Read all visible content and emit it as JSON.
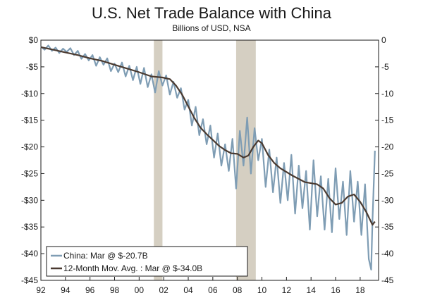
{
  "chart_data": {
    "type": "line",
    "title": "U.S. Net Trade Balance with China",
    "subtitle": "Billions of USD, NSA",
    "xlim": [
      1992,
      2019.5
    ],
    "ylim": [
      -45,
      0
    ],
    "x_ticks": [
      "92",
      "94",
      "96",
      "98",
      "00",
      "02",
      "04",
      "06",
      "08",
      "10",
      "12",
      "14",
      "16",
      "18"
    ],
    "y_ticks": [
      "$0",
      "-$5",
      "-$10",
      "-$15",
      "-$20",
      "-$25",
      "-$30",
      "-$35",
      "-$40",
      "-$45"
    ],
    "y_ticks_right": [
      "0",
      "-5",
      "-10",
      "-15",
      "-20",
      "-25",
      "-30",
      "-35",
      "-40",
      "-45"
    ],
    "recessions": [
      [
        2001.2,
        2001.9
      ],
      [
        2007.9,
        2009.5
      ]
    ],
    "colors": {
      "china": "#7f9db4",
      "moving_avg": "#4a3a30",
      "recession": "#d5cfc2"
    },
    "legend_position": "bottom-left",
    "series": [
      {
        "name": "China: Mar @ $-20.7B",
        "x": [
          1992,
          1992.3,
          1992.6,
          1992.9,
          1993.2,
          1993.5,
          1993.8,
          1994.1,
          1994.4,
          1994.7,
          1995,
          1995.3,
          1995.6,
          1995.9,
          1996.2,
          1996.5,
          1996.8,
          1997.1,
          1997.4,
          1997.7,
          1998,
          1998.3,
          1998.6,
          1998.9,
          1999.2,
          1999.5,
          1999.8,
          2000.1,
          2000.4,
          2000.7,
          2001,
          2001.3,
          2001.6,
          2001.9,
          2002.2,
          2002.5,
          2002.8,
          2003.1,
          2003.4,
          2003.7,
          2004,
          2004.3,
          2004.6,
          2004.9,
          2005.2,
          2005.5,
          2005.8,
          2006.1,
          2006.4,
          2006.7,
          2007,
          2007.3,
          2007.6,
          2007.9,
          2008.2,
          2008.5,
          2008.8,
          2009.1,
          2009.4,
          2009.7,
          2010,
          2010.3,
          2010.6,
          2010.9,
          2011.2,
          2011.5,
          2011.8,
          2012.1,
          2012.4,
          2012.7,
          2013,
          2013.3,
          2013.6,
          2013.9,
          2014.2,
          2014.5,
          2014.8,
          2015.1,
          2015.4,
          2015.7,
          2016,
          2016.3,
          2016.6,
          2016.9,
          2017.2,
          2017.5,
          2017.8,
          2018.1,
          2018.4,
          2018.7,
          2018.9,
          2019,
          2019.2
        ],
        "values": [
          -1.2,
          -1.8,
          -1.0,
          -2.0,
          -1.4,
          -2.4,
          -1.6,
          -2.2,
          -1.5,
          -2.8,
          -2.0,
          -3.5,
          -2.6,
          -3.8,
          -2.8,
          -4.8,
          -3.2,
          -4.6,
          -3.4,
          -5.8,
          -4.4,
          -6.0,
          -4.2,
          -6.8,
          -4.8,
          -7.5,
          -5.0,
          -8.2,
          -5.2,
          -8.8,
          -6.4,
          -9.8,
          -5.8,
          -8.5,
          -6.6,
          -10.2,
          -7.8,
          -10.8,
          -9.0,
          -13.0,
          -11.2,
          -16.0,
          -12.5,
          -17.8,
          -14.8,
          -19.5,
          -16.0,
          -22.0,
          -17.5,
          -23.5,
          -19.5,
          -24.5,
          -18.5,
          -27.8,
          -17.0,
          -23.5,
          -14.5,
          -25.0,
          -16.5,
          -22.5,
          -18.5,
          -27.5,
          -20.5,
          -28.5,
          -22.0,
          -30.5,
          -23.0,
          -30.0,
          -21.5,
          -32.5,
          -23.5,
          -31.5,
          -24.5,
          -35.5,
          -22.5,
          -33.0,
          -25.5,
          -35.5,
          -26.0,
          -36.0,
          -24.0,
          -33.5,
          -26.5,
          -36.5,
          -24.5,
          -34.0,
          -26.5,
          -36.5,
          -27.0,
          -41.0,
          -43.0,
          -34.0,
          -20.7
        ]
      },
      {
        "name": "12-Month Mov. Avg. : Mar @ $-34.0B",
        "x": [
          1992,
          1993,
          1994,
          1995,
          1996,
          1997,
          1998,
          1999,
          2000,
          2001,
          2001.9,
          2002.5,
          2003,
          2003.5,
          2004,
          2004.5,
          2005,
          2005.5,
          2006,
          2006.5,
          2007,
          2007.5,
          2008,
          2008.5,
          2008.9,
          2009.3,
          2009.7,
          2010,
          2010.5,
          2011,
          2011.5,
          2012,
          2012.5,
          2013,
          2013.5,
          2014,
          2014.5,
          2015,
          2015.5,
          2016,
          2016.5,
          2017,
          2017.5,
          2018,
          2018.5,
          2019,
          2019.2
        ],
        "values": [
          -1.3,
          -1.8,
          -2.3,
          -2.8,
          -3.4,
          -3.9,
          -4.6,
          -5.3,
          -6.0,
          -6.8,
          -7.0,
          -7.3,
          -8.5,
          -10.2,
          -12.4,
          -14.6,
          -16.4,
          -17.6,
          -18.7,
          -19.8,
          -20.6,
          -21.2,
          -21.3,
          -22.0,
          -21.6,
          -20.0,
          -18.8,
          -19.3,
          -21.5,
          -23.0,
          -24.0,
          -24.7,
          -25.4,
          -26.0,
          -26.6,
          -26.8,
          -27.0,
          -27.8,
          -29.6,
          -30.8,
          -30.5,
          -29.3,
          -28.9,
          -30.3,
          -32.2,
          -34.6,
          -34.0
        ]
      }
    ]
  }
}
